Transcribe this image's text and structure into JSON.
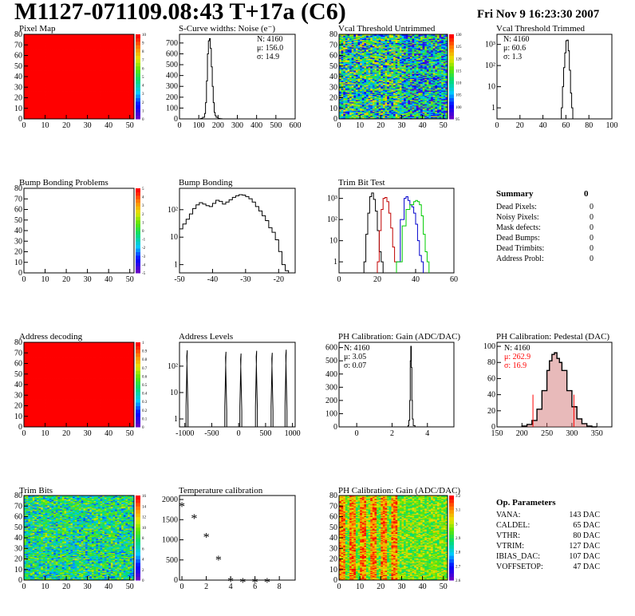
{
  "header": {
    "title": "M1127-071109.08:43 T+17a (C6)",
    "date": "Fri Nov  9 16:23:30 2007"
  },
  "colors": {
    "histogram_line": "#000000",
    "pixel_map_fill": "#ff0000",
    "trim_red": "#c00000",
    "trim_blue": "#0000cc",
    "trim_green": "#00cc00",
    "stat_red": "#ff0000",
    "pedestal_fill": "#cc6666"
  },
  "panels": {
    "pixel_map": {
      "title": "Pixel Map",
      "palette_ticks": [
        "10",
        "9",
        "8",
        "7",
        "6",
        "5",
        "4",
        "3",
        "2",
        "1",
        "0"
      ]
    },
    "scurve": {
      "title": "S-Curve widths: Noise (e⁻)",
      "stats": {
        "n": "N: 4160",
        "mu": "μ: 156.0",
        "sigma": "σ: 14.9"
      }
    },
    "vcal_untrimmed": {
      "title": "Vcal Threshold Untrimmed",
      "palette_ticks": [
        "130",
        "125",
        "120",
        "115",
        "110",
        "105",
        "100",
        "95"
      ]
    },
    "vcal_trimmed": {
      "title": "Vcal Threshold Trimmed",
      "stats": {
        "n": "N: 4160",
        "mu": "μ: 60.6",
        "sigma": "σ:  1.3"
      }
    },
    "bump_problems": {
      "title": "Bump Bonding Problems",
      "palette_ticks": [
        "5",
        "4",
        "3",
        "2",
        "1",
        "0",
        "-1",
        "-2",
        "-3",
        "-4",
        "-5"
      ]
    },
    "bump_bonding": {
      "title": "Bump Bonding"
    },
    "trim_bit_test": {
      "title": "Trim Bit Test"
    },
    "summary": {
      "title": "Summary",
      "total": "0",
      "rows": [
        {
          "label": "Dead Pixels:",
          "value": "0"
        },
        {
          "label": "Noisy Pixels:",
          "value": "0"
        },
        {
          "label": "Mask defects:",
          "value": "0"
        },
        {
          "label": "Dead Bumps:",
          "value": "0"
        },
        {
          "label": "Dead Trimbits:",
          "value": "0"
        },
        {
          "label": "Address Probl:",
          "value": "0"
        }
      ]
    },
    "address_decoding": {
      "title": "Address decoding",
      "palette_ticks": [
        "1",
        "0.9",
        "0.8",
        "0.7",
        "0.6",
        "0.5",
        "0.4",
        "0.3",
        "0.2",
        "0.1",
        "0"
      ]
    },
    "address_levels": {
      "title": "Address Levels"
    },
    "ph_gain": {
      "title": "PH Calibration: Gain (ADC/DAC)",
      "stats": {
        "n": "N: 4160",
        "mu": "μ: 3.05",
        "sigma": "σ: 0.07"
      }
    },
    "ph_pedestal": {
      "title": "PH Calibration: Pedestal (DAC)",
      "stats": {
        "n": "N: 4160",
        "mu": "μ: 262.9",
        "sigma": "σ: 16.9"
      }
    },
    "trim_bits": {
      "title": "Trim Bits",
      "palette_ticks": [
        "16",
        "14",
        "12",
        "10",
        "8",
        "6",
        "4",
        "2",
        "0"
      ]
    },
    "temperature": {
      "title": "Temperature calibration"
    },
    "ph_gain_map": {
      "title": "PH Calibration: Gain (ADC/DAC)",
      "palette_ticks": [
        "3.2",
        "3.1",
        "3",
        "2.9",
        "2.8",
        "2.7",
        "2.6"
      ]
    },
    "op_params": {
      "title": "Op. Parameters",
      "rows": [
        {
          "name": "VANA:",
          "value": "143 DAC"
        },
        {
          "name": "CALDEL:",
          "value": "65 DAC"
        },
        {
          "name": "VTHR:",
          "value": "80 DAC"
        },
        {
          "name": "VTRIM:",
          "value": "127 DAC"
        },
        {
          "name": "IBIAS_DAC:",
          "value": "107 DAC"
        },
        {
          "name": "VOFFSETOP:",
          "value": "47 DAC"
        }
      ]
    }
  },
  "chart_data": [
    {
      "id": "pixel_map",
      "type": "heatmap",
      "title": "Pixel Map",
      "x_ticks": [
        "0",
        "10",
        "20",
        "30",
        "40",
        "50"
      ],
      "y_ticks": [
        "0",
        "10",
        "20",
        "30",
        "40",
        "50",
        "60",
        "70",
        "80"
      ],
      "xlim": [
        0,
        52
      ],
      "ylim": [
        0,
        80
      ],
      "zlim": [
        0,
        10
      ],
      "uniform_value": 10
    },
    {
      "id": "scurve",
      "type": "line",
      "title": "S-Curve widths: Noise (e⁻)",
      "x_ticks": [
        "0",
        "100",
        "200",
        "300",
        "400",
        "500",
        "600"
      ],
      "y_ticks": [
        "0",
        "100",
        "200",
        "300",
        "400",
        "500",
        "600",
        "700"
      ],
      "xlim": [
        0,
        600
      ],
      "ylim": [
        0,
        780
      ],
      "x": [
        100,
        110,
        120,
        130,
        135,
        140,
        145,
        150,
        155,
        160,
        165,
        170,
        175,
        180,
        185,
        190,
        200,
        210,
        220
      ],
      "y": [
        0,
        5,
        15,
        50,
        150,
        350,
        600,
        720,
        740,
        650,
        480,
        300,
        150,
        60,
        30,
        15,
        5,
        2,
        0
      ]
    },
    {
      "id": "vcal_untrimmed",
      "type": "heatmap",
      "title": "Vcal Threshold Untrimmed",
      "x_ticks": [
        "0",
        "10",
        "20",
        "30",
        "40",
        "50"
      ],
      "y_ticks": [
        "0",
        "10",
        "20",
        "30",
        "40",
        "50",
        "60",
        "70",
        "80"
      ],
      "xlim": [
        0,
        52
      ],
      "ylim": [
        0,
        80
      ],
      "zlim": [
        95,
        130
      ]
    },
    {
      "id": "vcal_trimmed",
      "type": "line",
      "title": "Vcal Threshold Trimmed",
      "log_y": true,
      "x_ticks": [
        "0",
        "20",
        "40",
        "60",
        "80",
        "100"
      ],
      "y_ticks": [
        "1",
        "10",
        "10²",
        "10³"
      ],
      "xlim": [
        0,
        100
      ],
      "ylim": [
        0.3,
        3000
      ],
      "x": [
        56,
        57,
        58,
        59,
        60,
        61,
        62,
        63,
        64,
        65
      ],
      "y": [
        1,
        10,
        80,
        400,
        1500,
        1600,
        500,
        60,
        5,
        1
      ]
    },
    {
      "id": "bump_problems",
      "type": "heatmap",
      "title": "Bump Bonding Problems",
      "x_ticks": [
        "0",
        "10",
        "20",
        "30",
        "40",
        "50"
      ],
      "y_ticks": [
        "0",
        "10",
        "20",
        "30",
        "40",
        "50",
        "60",
        "70",
        "80"
      ],
      "xlim": [
        0,
        52
      ],
      "ylim": [
        0,
        80
      ],
      "zlim": [
        -5,
        5
      ]
    },
    {
      "id": "bump_bonding",
      "type": "line",
      "title": "Bump Bonding",
      "log_y": true,
      "x_ticks": [
        "-50",
        "-40",
        "-30",
        "-20"
      ],
      "y_ticks": [
        "1",
        "10",
        "10²"
      ],
      "xlim": [
        -50,
        -15
      ],
      "ylim": [
        0.5,
        600
      ],
      "x": [
        -50,
        -49,
        -48,
        -47,
        -46,
        -45,
        -44,
        -43,
        -42,
        -41,
        -40,
        -39,
        -38,
        -37,
        -36,
        -35,
        -34,
        -33,
        -32,
        -31,
        -30,
        -29,
        -28,
        -27,
        -26,
        -25,
        -24,
        -23,
        -22,
        -21,
        -20,
        -19,
        -18
      ],
      "y": [
        20,
        30,
        45,
        70,
        110,
        150,
        180,
        160,
        140,
        130,
        170,
        220,
        200,
        160,
        190,
        230,
        280,
        320,
        350,
        340,
        300,
        250,
        190,
        130,
        90,
        60,
        40,
        22,
        15,
        8,
        3,
        1,
        0.6
      ]
    },
    {
      "id": "trim_bit_test",
      "type": "line",
      "title": "Trim Bit Test",
      "log_y": true,
      "x_ticks": [
        "0",
        "20",
        "40",
        "60"
      ],
      "y_ticks": [
        "1",
        "10",
        "10²",
        "10³"
      ],
      "xlim": [
        0,
        60
      ],
      "ylim": [
        0.3,
        3000
      ],
      "series": [
        {
          "color": "black",
          "x": [
            13,
            14,
            15,
            16,
            17,
            18,
            19,
            20,
            21,
            22
          ],
          "y": [
            1,
            20,
            200,
            1200,
            1800,
            900,
            250,
            30,
            3,
            1
          ]
        },
        {
          "color": "red",
          "x": [
            20,
            21,
            22,
            23,
            24,
            25,
            26,
            27,
            28,
            29
          ],
          "y": [
            1,
            30,
            300,
            1000,
            1100,
            700,
            200,
            40,
            5,
            1
          ]
        },
        {
          "color": "blue",
          "x": [
            30,
            32,
            34,
            35,
            36,
            37,
            38,
            39,
            40,
            41,
            42,
            43
          ],
          "y": [
            1,
            100,
            1000,
            1200,
            800,
            500,
            400,
            200,
            60,
            10,
            2,
            1
          ]
        },
        {
          "color": "green",
          "x": [
            30,
            33,
            35,
            37,
            39,
            40,
            41,
            42,
            43,
            44,
            45,
            46
          ],
          "y": [
            1,
            50,
            300,
            500,
            700,
            800,
            700,
            500,
            150,
            20,
            3,
            1
          ]
        }
      ]
    },
    {
      "id": "address_decoding",
      "type": "heatmap",
      "title": "Address decoding",
      "x_ticks": [
        "0",
        "10",
        "20",
        "30",
        "40",
        "50"
      ],
      "y_ticks": [
        "0",
        "10",
        "20",
        "30",
        "40",
        "50",
        "60",
        "70",
        "80"
      ],
      "xlim": [
        0,
        52
      ],
      "ylim": [
        0,
        80
      ],
      "zlim": [
        0,
        1
      ],
      "uniform_value": 1
    },
    {
      "id": "address_levels",
      "type": "line",
      "title": "Address Levels",
      "log_y": true,
      "x_ticks": [
        "-1000",
        "-500",
        "0",
        "500",
        "1000"
      ],
      "y_ticks": [
        "1",
        "10",
        "10²"
      ],
      "xlim": [
        -1100,
        1050
      ],
      "ylim": [
        0.5,
        800
      ],
      "peaks": [
        {
          "center": -960,
          "height": 400
        },
        {
          "center": -240,
          "height": 350
        },
        {
          "center": 40,
          "height": 300
        },
        {
          "center": 330,
          "height": 380
        },
        {
          "center": 620,
          "height": 320
        },
        {
          "center": 880,
          "height": 420
        }
      ]
    },
    {
      "id": "ph_gain",
      "type": "line",
      "title": "PH Calibration: Gain (ADC/DAC)",
      "x_ticks": [
        "0",
        "2",
        "4"
      ],
      "y_ticks": [
        "0",
        "100",
        "200",
        "300",
        "400",
        "500",
        "600"
      ],
      "xlim": [
        -1,
        5.5
      ],
      "ylim": [
        0,
        640
      ],
      "x": [
        2.8,
        2.9,
        2.95,
        3.0,
        3.03,
        3.06,
        3.09,
        3.12,
        3.15,
        3.2,
        3.3
      ],
      "y": [
        0,
        10,
        50,
        200,
        500,
        610,
        450,
        200,
        60,
        10,
        0
      ]
    },
    {
      "id": "ph_pedestal",
      "type": "area",
      "title": "PH Calibration: Pedestal (DAC)",
      "x_ticks": [
        "150",
        "200",
        "250",
        "300",
        "350"
      ],
      "y_ticks": [
        "0",
        "20",
        "40",
        "60",
        "80",
        "100"
      ],
      "xlim": [
        150,
        380
      ],
      "ylim": [
        0,
        105
      ],
      "x": [
        200,
        210,
        220,
        230,
        240,
        250,
        255,
        260,
        265,
        270,
        275,
        280,
        290,
        300,
        310,
        320,
        330,
        340
      ],
      "y": [
        1,
        3,
        8,
        22,
        45,
        70,
        82,
        90,
        92,
        85,
        80,
        70,
        45,
        25,
        10,
        4,
        1,
        0
      ]
    },
    {
      "id": "trim_bits",
      "type": "heatmap",
      "title": "Trim Bits",
      "x_ticks": [
        "0",
        "10",
        "20",
        "30",
        "40",
        "50"
      ],
      "y_ticks": [
        "0",
        "10",
        "20",
        "30",
        "40",
        "50",
        "60",
        "70",
        "80"
      ],
      "xlim": [
        0,
        52
      ],
      "ylim": [
        0,
        80
      ],
      "zlim": [
        0,
        16
      ]
    },
    {
      "id": "temperature",
      "type": "scatter",
      "title": "Temperature calibration",
      "x_ticks": [
        "0",
        "2",
        "4",
        "6",
        "8"
      ],
      "y_ticks": [
        "0",
        "500",
        "1000",
        "1500",
        "2000"
      ],
      "xlim": [
        -0.2,
        9.3
      ],
      "ylim": [
        0,
        2100
      ],
      "x": [
        0,
        1,
        2,
        3,
        4,
        5,
        6,
        7
      ],
      "y": [
        1880,
        1580,
        1120,
        550,
        20,
        0,
        0,
        0
      ]
    },
    {
      "id": "ph_gain_map",
      "type": "heatmap",
      "title": "PH Calibration: Gain (ADC/DAC)",
      "x_ticks": [
        "0",
        "10",
        "20",
        "30",
        "40",
        "50"
      ],
      "y_ticks": [
        "0",
        "10",
        "20",
        "30",
        "40",
        "50",
        "60",
        "70",
        "80"
      ],
      "xlim": [
        0,
        52
      ],
      "ylim": [
        0,
        80
      ],
      "zlim": [
        2.6,
        3.2
      ]
    }
  ]
}
